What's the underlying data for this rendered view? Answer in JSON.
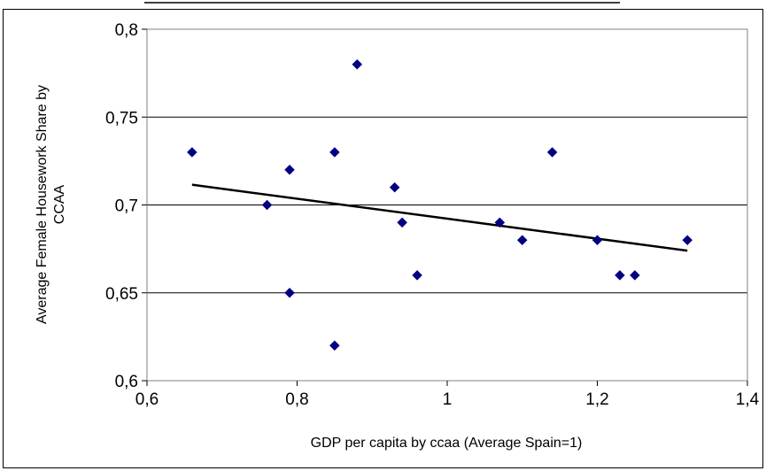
{
  "chart_data": {
    "type": "scatter",
    "title": "",
    "xlabel": "GDP per capita by ccaa (Average Spain=1)",
    "ylabel_lines": [
      "Average Female Housework Share by",
      "CCAA"
    ],
    "xlim": [
      0.6,
      1.4
    ],
    "ylim": [
      0.6,
      0.8
    ],
    "x_ticks": [
      0.6,
      0.8,
      1.0,
      1.2,
      1.4
    ],
    "x_tick_labels": [
      "0,6",
      "0,8",
      "1",
      "1,2",
      "1,4"
    ],
    "y_ticks": [
      0.6,
      0.65,
      0.7,
      0.75,
      0.8
    ],
    "y_tick_labels": [
      "0,6",
      "0,65",
      "0,7",
      "0,75",
      "0,8"
    ],
    "grid": "horizontal",
    "marker_color": "#000080",
    "trendline_color": "#000000",
    "points": [
      {
        "x": 0.66,
        "y": 0.73
      },
      {
        "x": 0.76,
        "y": 0.7
      },
      {
        "x": 0.79,
        "y": 0.72
      },
      {
        "x": 0.79,
        "y": 0.65
      },
      {
        "x": 0.85,
        "y": 0.73
      },
      {
        "x": 0.85,
        "y": 0.62
      },
      {
        "x": 0.88,
        "y": 0.78
      },
      {
        "x": 0.93,
        "y": 0.71
      },
      {
        "x": 0.94,
        "y": 0.69
      },
      {
        "x": 0.96,
        "y": 0.66
      },
      {
        "x": 1.07,
        "y": 0.69
      },
      {
        "x": 1.1,
        "y": 0.68
      },
      {
        "x": 1.14,
        "y": 0.73
      },
      {
        "x": 1.2,
        "y": 0.68
      },
      {
        "x": 1.23,
        "y": 0.66
      },
      {
        "x": 1.25,
        "y": 0.66
      },
      {
        "x": 1.32,
        "y": 0.68
      }
    ],
    "trendline": {
      "x": [
        0.66,
        1.32
      ],
      "y": [
        0.7115,
        0.674
      ]
    }
  }
}
